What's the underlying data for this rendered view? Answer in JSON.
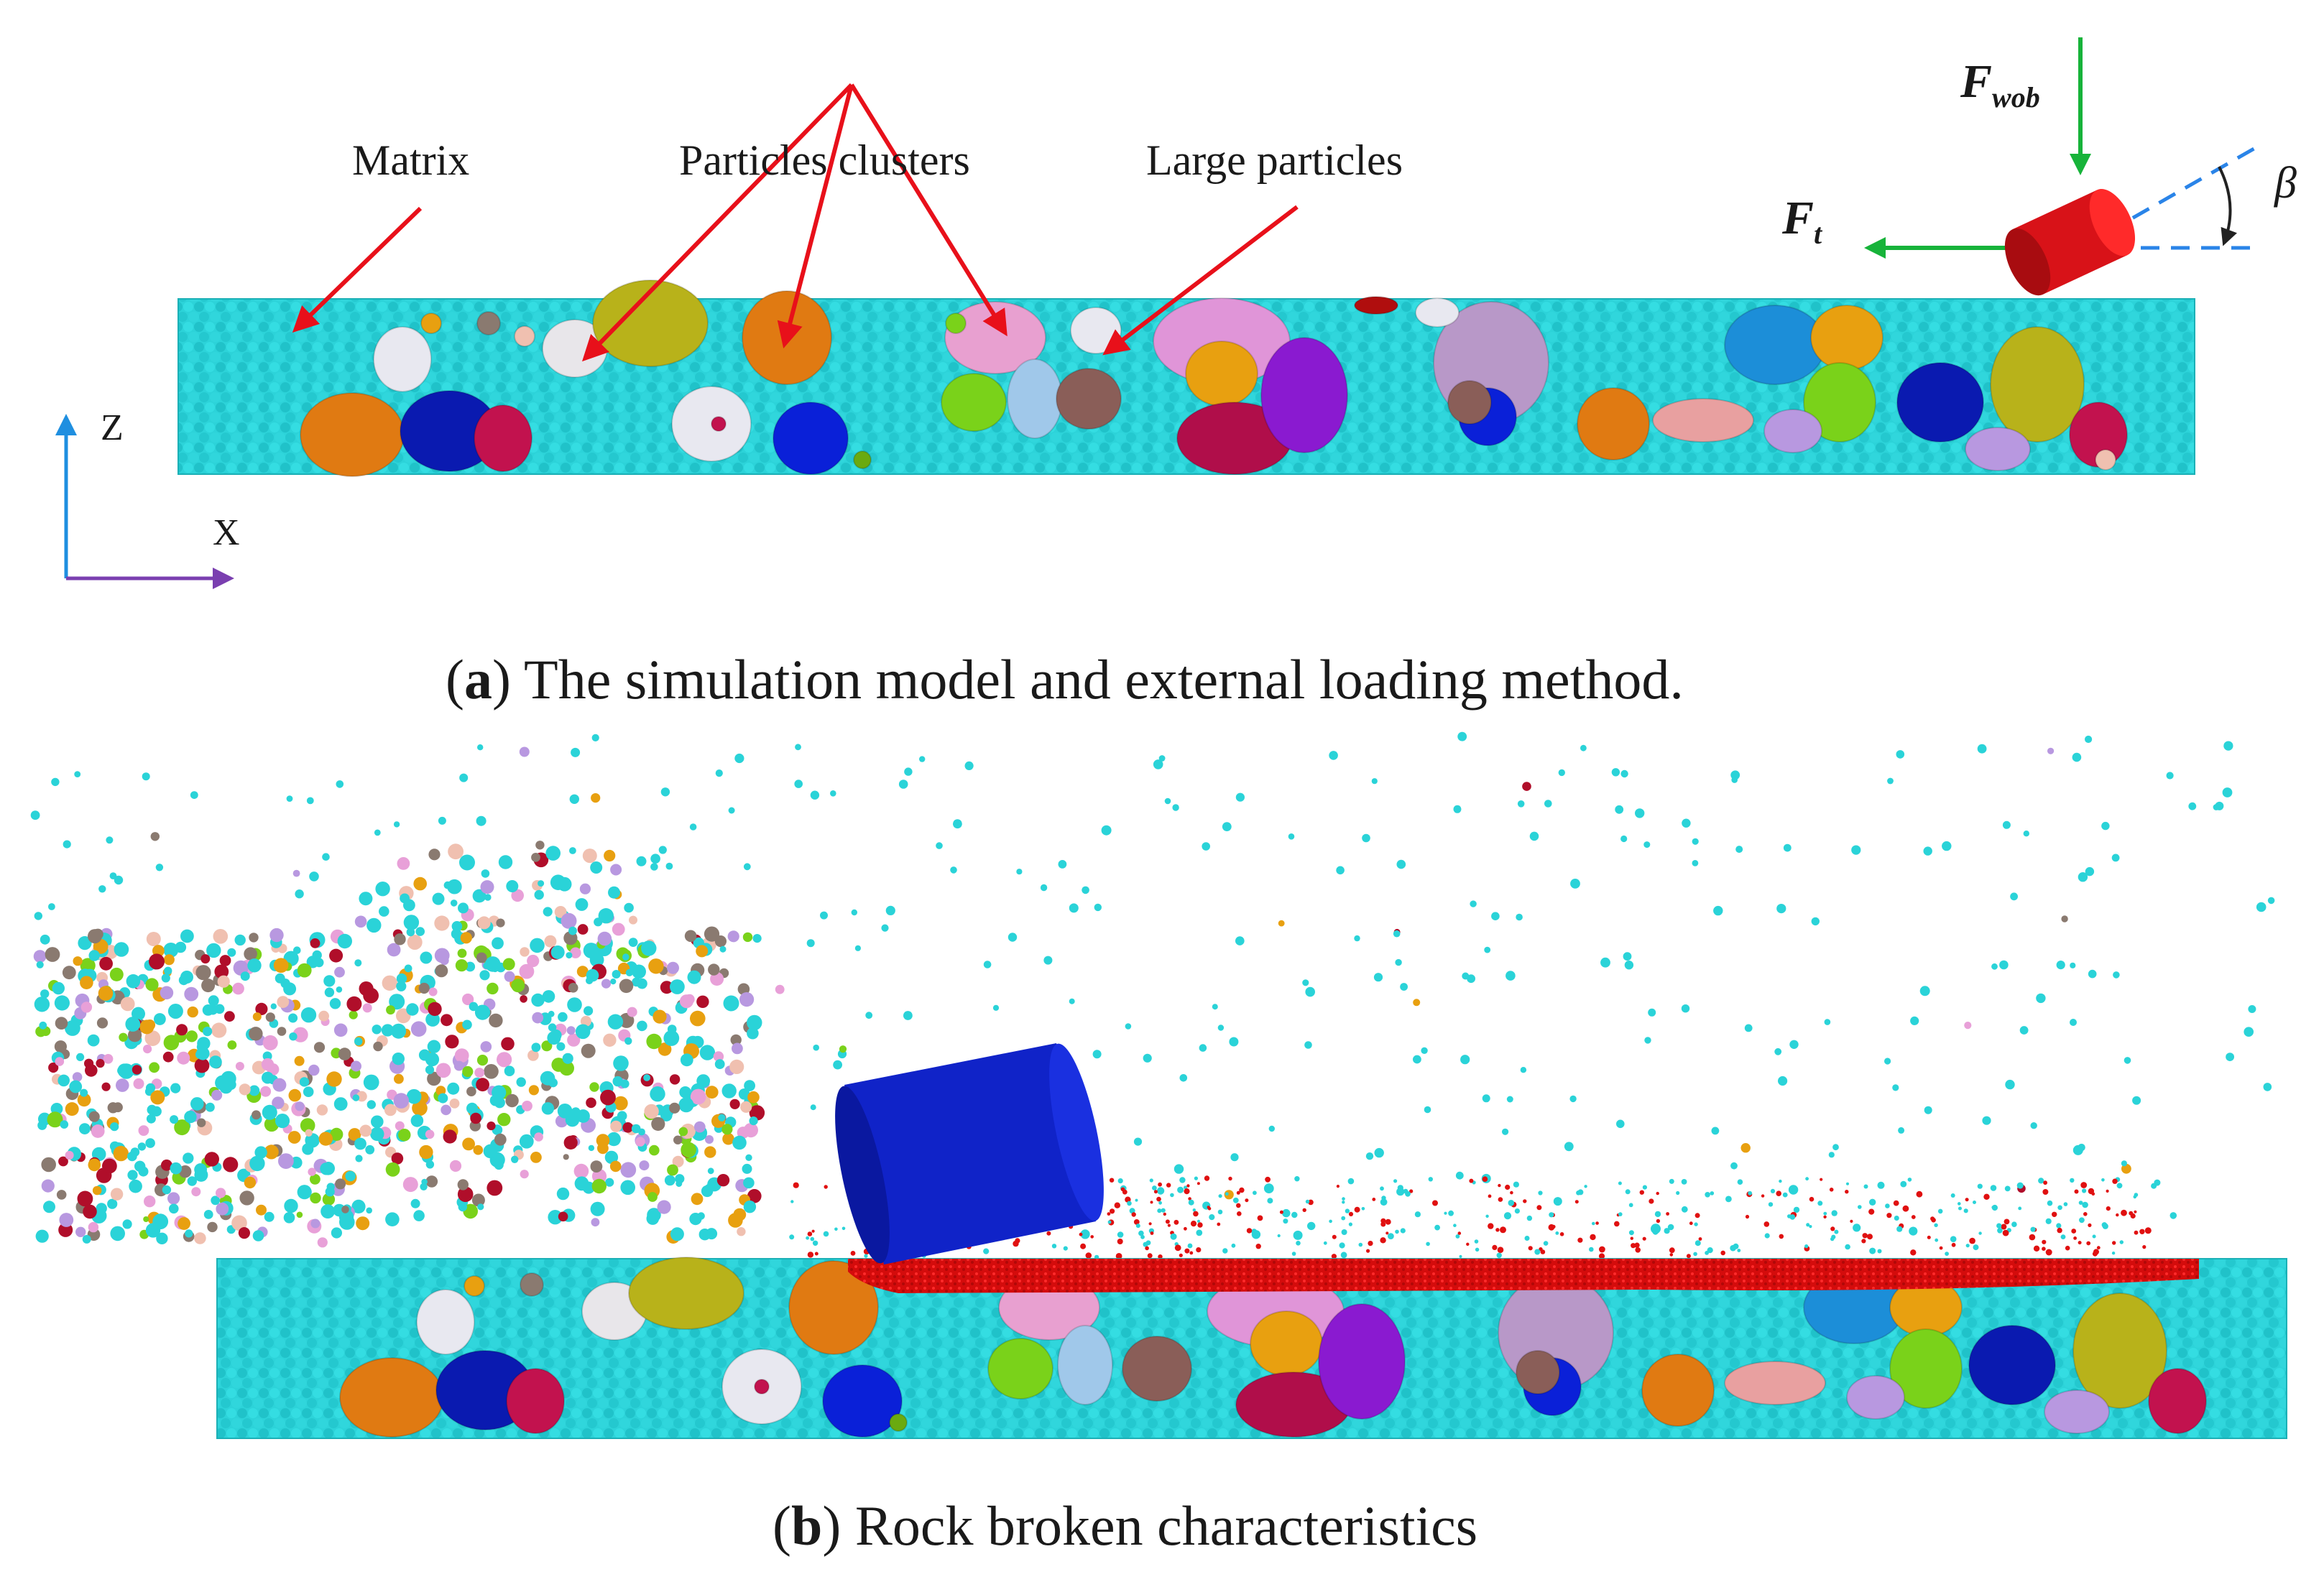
{
  "panel_a": {
    "labels": {
      "matrix": "Matrix",
      "particles_clusters": "Particles clusters",
      "large_particles": "Large particles"
    },
    "forces": {
      "wob_main": "F",
      "wob_sub": "wob",
      "t_main": "F",
      "t_sub": "t",
      "angle": "β"
    },
    "axes": {
      "z": "Z",
      "x": "X"
    },
    "caption": {
      "open": "(",
      "letter": "a",
      "text": ") The simulation model and external loading method."
    }
  },
  "panel_b": {
    "caption": {
      "open": "(",
      "letter": "b",
      "text": ") Rock broken characteristics"
    }
  },
  "colors": {
    "matrix": "#2ad3d8",
    "arrow_red": "#e8101a",
    "arrow_green": "#17b33a",
    "dash_blue": "#2a84e8",
    "cutter_red": "#d81218",
    "cutter_blue": "#1023c8",
    "debris_red": "#e01010",
    "axis_z": "#1f8fe0",
    "axis_x": "#7a3fb0"
  }
}
